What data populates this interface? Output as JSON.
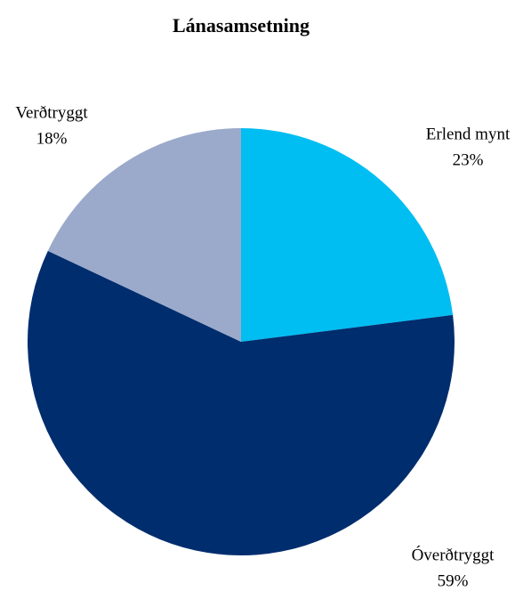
{
  "chart_data": {
    "type": "pie",
    "title": "Lánasamsetning",
    "categories": [
      "Erlend mynt",
      "Óverðtryggt",
      "Verðtryggt"
    ],
    "values": [
      23,
      59,
      18
    ],
    "value_labels": [
      "23%",
      "59%",
      "18%"
    ],
    "colors": [
      "#00bef2",
      "#002d6e",
      "#9baacb"
    ]
  }
}
